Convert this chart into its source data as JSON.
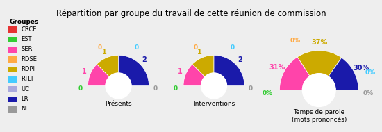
{
  "title": "Répartition par groupe du travail de cette réunion de commission",
  "groups": [
    "CRCE",
    "EST",
    "SER",
    "RDSE",
    "RDPI",
    "RTLI",
    "UC",
    "LR",
    "NI"
  ],
  "colors": [
    "#e53333",
    "#33cc33",
    "#ff44aa",
    "#ffaa44",
    "#ccaa00",
    "#44ccff",
    "#aaaadd",
    "#1a1aaa",
    "#999999"
  ],
  "presents": [
    0,
    0,
    1,
    0,
    1,
    0,
    0,
    2,
    0
  ],
  "interventions": [
    0,
    0,
    1,
    0,
    1,
    0,
    0,
    2,
    0
  ],
  "temps_parole": [
    0,
    0,
    31,
    0,
    37,
    0,
    0,
    30,
    0
  ],
  "background": "#eeeeee",
  "legend_bg": "#ffffff",
  "chart_labels": [
    "Présents",
    "Interventions",
    "Temps de parole\n(mots prononcés)"
  ],
  "outer_r": 1.0,
  "inner_r": 0.42
}
